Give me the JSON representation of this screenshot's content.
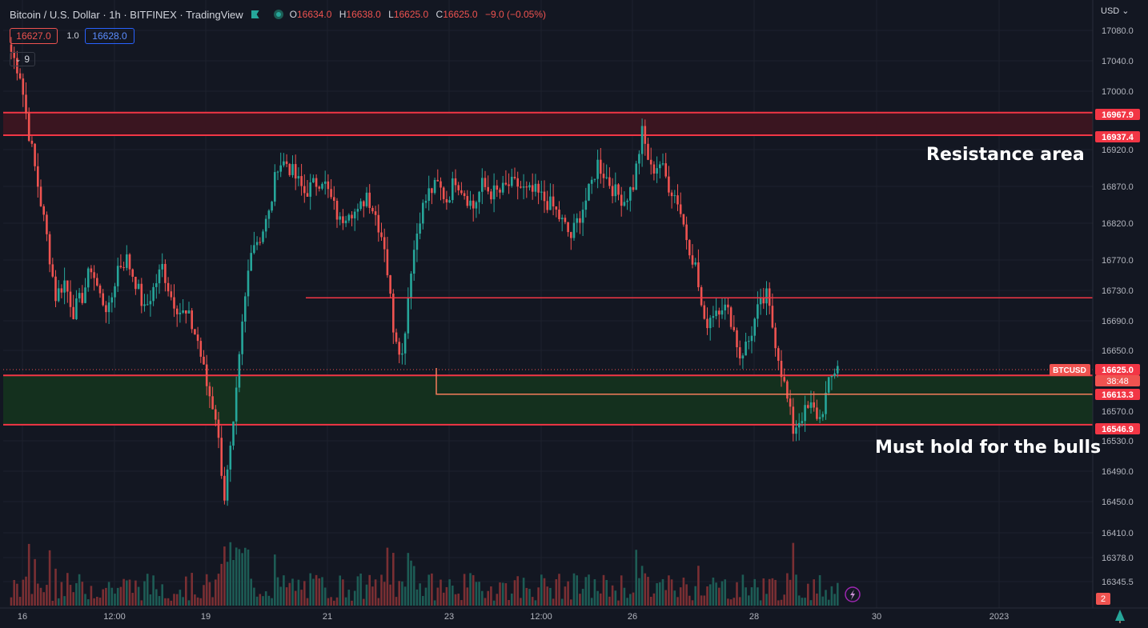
{
  "header": {
    "symbol_title": "Bitcoin / U.S. Dollar · 1h · BITFINEX · TradingView",
    "ohlc": [
      {
        "k": "O",
        "v": "16634.0"
      },
      {
        "k": "H",
        "v": "16638.0"
      },
      {
        "k": "L",
        "v": "16625.0"
      },
      {
        "k": "C",
        "v": "16625.0"
      },
      {
        "k": "",
        "v": "−9.0 (−0.05%)"
      }
    ],
    "sell_price": "16627.0",
    "spread": "1.0",
    "buy_price": "16628.0",
    "indicators_count": "9"
  },
  "currency_label": "USD",
  "colors": {
    "background": "#131722",
    "up": "#26a69a",
    "down": "#ef5350",
    "grid": "#1e222d",
    "resistance_fill": "#3a1520",
    "support_fill": "#14301e",
    "line": "#f23645"
  },
  "annotations": {
    "resistance": "Resistance area",
    "support": "Must hold for the bulls"
  },
  "chart_data": {
    "type": "candlestick",
    "title": "Bitcoin / U.S. Dollar · 1h · BITFINEX · TradingView",
    "y_ticks": [
      "17080.0",
      "17040.0",
      "17000.0",
      "16920.0",
      "16870.0",
      "16820.0",
      "16770.0",
      "16730.0",
      "16690.0",
      "16650.0",
      "16570.0",
      "16530.0",
      "16490.0",
      "16450.0",
      "16410.0",
      "16378.0",
      "16345.5"
    ],
    "x_ticks": [
      "16",
      "12:00",
      "19",
      "21",
      "23",
      "12:00",
      "26",
      "28",
      "30",
      "2023"
    ],
    "price_labels": [
      {
        "value": "16967.9",
        "kind": "level"
      },
      {
        "value": "16937.4",
        "kind": "level"
      },
      {
        "value": "16625.0",
        "kind": "last"
      },
      {
        "value": "38:48",
        "kind": "countdown"
      },
      {
        "value": "16613.3",
        "kind": "level"
      },
      {
        "value": "16546.9",
        "kind": "level"
      }
    ],
    "symbol_tag": "BTCUSD",
    "volume_badge": "2",
    "zones": [
      {
        "name": "resistance",
        "from": 16937.4,
        "to": 16967.9
      },
      {
        "name": "support",
        "from": 16546.9,
        "to": 16613.3
      }
    ],
    "horizontal_lines": [
      {
        "value": 16718,
        "from_x": "20",
        "to_x": "end"
      },
      {
        "value": 16588,
        "from_x": "23",
        "to_x": "end"
      }
    ],
    "path": [
      [
        0,
        17050
      ],
      [
        3,
        17020
      ],
      [
        6,
        16940
      ],
      [
        9,
        16870
      ],
      [
        12,
        16800
      ],
      [
        15,
        16720
      ],
      [
        18,
        16740
      ],
      [
        21,
        16700
      ],
      [
        24,
        16720
      ],
      [
        27,
        16760
      ],
      [
        30,
        16720
      ],
      [
        33,
        16700
      ],
      [
        36,
        16760
      ],
      [
        39,
        16770
      ],
      [
        42,
        16740
      ],
      [
        45,
        16700
      ],
      [
        48,
        16730
      ],
      [
        51,
        16760
      ],
      [
        54,
        16720
      ],
      [
        57,
        16700
      ],
      [
        60,
        16690
      ],
      [
        63,
        16660
      ],
      [
        66,
        16600
      ],
      [
        69,
        16560
      ],
      [
        72,
        16450
      ],
      [
        75,
        16540
      ],
      [
        78,
        16680
      ],
      [
        81,
        16790
      ],
      [
        84,
        16800
      ],
      [
        87,
        16830
      ],
      [
        90,
        16900
      ],
      [
        93,
        16900
      ],
      [
        96,
        16880
      ],
      [
        99,
        16860
      ],
      [
        102,
        16870
      ],
      [
        105,
        16880
      ],
      [
        108,
        16850
      ],
      [
        111,
        16820
      ],
      [
        114,
        16840
      ],
      [
        117,
        16830
      ],
      [
        120,
        16860
      ],
      [
        123,
        16830
      ],
      [
        126,
        16790
      ],
      [
        129,
        16680
      ],
      [
        132,
        16640
      ],
      [
        135,
        16760
      ],
      [
        138,
        16830
      ],
      [
        141,
        16860
      ],
      [
        144,
        16870
      ],
      [
        147,
        16850
      ],
      [
        150,
        16880
      ],
      [
        153,
        16860
      ],
      [
        156,
        16840
      ],
      [
        159,
        16870
      ],
      [
        162,
        16860
      ],
      [
        165,
        16860
      ],
      [
        168,
        16870
      ],
      [
        171,
        16870
      ],
      [
        174,
        16860
      ],
      [
        177,
        16860
      ],
      [
        180,
        16850
      ],
      [
        183,
        16840
      ],
      [
        186,
        16820
      ],
      [
        189,
        16800
      ],
      [
        192,
        16830
      ],
      [
        195,
        16860
      ],
      [
        198,
        16900
      ],
      [
        201,
        16880
      ],
      [
        204,
        16860
      ],
      [
        207,
        16850
      ],
      [
        210,
        16870
      ],
      [
        213,
        16940
      ],
      [
        216,
        16890
      ],
      [
        219,
        16900
      ],
      [
        222,
        16870
      ],
      [
        225,
        16850
      ],
      [
        228,
        16800
      ],
      [
        231,
        16760
      ],
      [
        234,
        16680
      ],
      [
        237,
        16700
      ],
      [
        240,
        16710
      ],
      [
        243,
        16690
      ],
      [
        246,
        16640
      ],
      [
        249,
        16660
      ],
      [
        252,
        16700
      ],
      [
        255,
        16720
      ],
      [
        258,
        16660
      ],
      [
        261,
        16600
      ],
      [
        264,
        16540
      ],
      [
        267,
        16560
      ],
      [
        270,
        16570
      ],
      [
        273,
        16555
      ],
      [
        276,
        16600
      ],
      [
        279,
        16630
      ]
    ],
    "volume_note": "volume histogram per hourly candle"
  }
}
